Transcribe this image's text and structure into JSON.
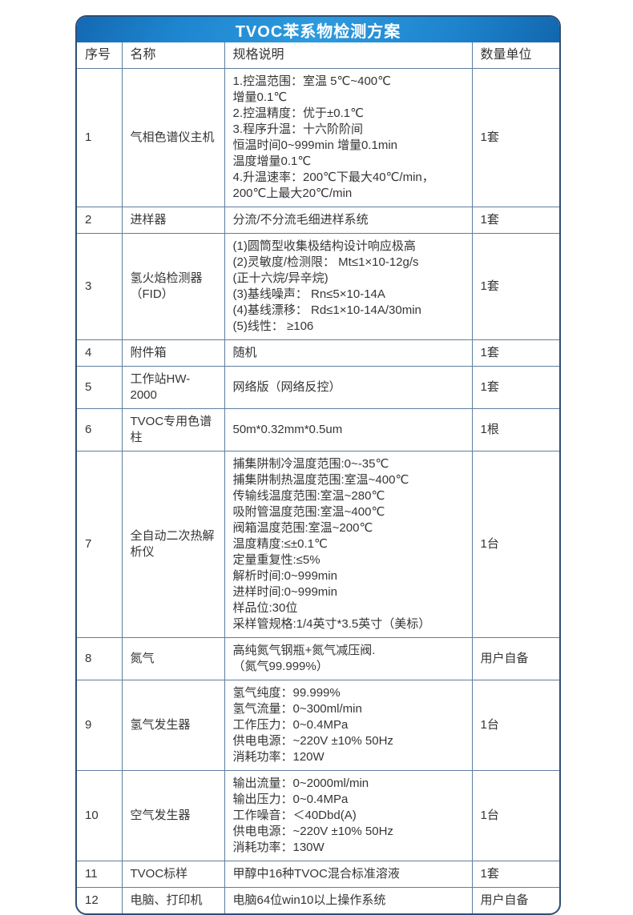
{
  "title": "TVOC苯系物检测方案",
  "table": {
    "headers": [
      "序号",
      "名称",
      "规格说明",
      "数量单位"
    ],
    "rows": [
      {
        "no": "1",
        "name": "气相色谱仪主机",
        "spec": [
          "1.控温范围：室温 5℃~400℃",
          "增量0.1℃",
          "2.控温精度：优于±0.1℃",
          "3.程序升温：十六阶阶间",
          "恒温时间0~999min 增量0.1min",
          "温度增量0.1℃",
          "4.升温速率：200℃下最大40℃/min，",
          "200℃上最大20℃/min"
        ],
        "qty": "1套"
      },
      {
        "no": "2",
        "name": "进样器",
        "spec": [
          "分流/不分流毛细进样系统"
        ],
        "qty": "1套"
      },
      {
        "no": "3",
        "name": "氢火焰检测器（FID）",
        "spec": [
          "(1)圆筒型收集极结构设计响应极高",
          "(2)灵敏度/检测限： Mt≤1×10-12g/s",
          "(正十六烷/异辛烷)",
          "(3)基线噪声： Rn≤5×10-14A",
          "(4)基线漂移： Rd≤1×10-14A/30min",
          "(5)线性： ≥106"
        ],
        "qty": "1套"
      },
      {
        "no": "4",
        "name": "附件箱",
        "spec": [
          "随机"
        ],
        "qty": "1套"
      },
      {
        "no": "5",
        "name": "工作站HW-2000",
        "spec": [
          "网络版（网络反控）"
        ],
        "qty": "1套"
      },
      {
        "no": "6",
        "name": "TVOC专用色谱柱",
        "spec": [
          "50m*0.32mm*0.5um"
        ],
        "qty": "1根"
      },
      {
        "no": "7",
        "name": "全自动二次热解析仪",
        "spec": [
          "捕集阱制冷温度范围:0~-35℃",
          "捕集阱制热温度范围:室温~400℃",
          "传输线温度范围:室温~280℃",
          "吸附管温度范围:室温~400℃",
          "阀箱温度范围:室温~200℃",
          "温度精度:≤±0.1℃",
          "定量重复性:≤5%",
          "解析时间:0~999min",
          "进样时间:0~999min",
          "样品位:30位",
          "采样管规格:1/4英寸*3.5英寸（美标）"
        ],
        "qty": "1台"
      },
      {
        "no": "8",
        "name": "氮气",
        "spec": [
          "高纯氮气钢瓶+氮气减压阀.",
          "（氮气99.999%）"
        ],
        "qty": "用户自备"
      },
      {
        "no": "9",
        "name": "氢气发生器",
        "spec": [
          "氢气纯度：99.999%",
          "氢气流量：0~300ml/min",
          "工作压力：0~0.4MPa",
          "供电电源：~220V ±10% 50Hz",
          "消耗功率：120W"
        ],
        "qty": "1台"
      },
      {
        "no": "10",
        "name": "空气发生器",
        "spec": [
          "输出流量：0~2000ml/min",
          "输出压力：0~0.4MPa",
          "工作噪音：＜40Dbd(A)",
          "供电电源：~220V ±10% 50Hz",
          "消耗功率：130W"
        ],
        "qty": "1台"
      },
      {
        "no": "11",
        "name": "TVOC标样",
        "spec": [
          "甲醇中16种TVOC混合标准溶液"
        ],
        "qty": "1套"
      },
      {
        "no": "12",
        "name": "电脑、打印机",
        "spec": [
          "电脑64位win10以上操作系统"
        ],
        "qty": "用户自备"
      }
    ]
  },
  "colors": {
    "header_blue": "#1e86d0",
    "border_outer": "#2f4e73",
    "border_inner": "#5f7d9e",
    "body_text": "#353535",
    "title_text": "#ffffff"
  }
}
